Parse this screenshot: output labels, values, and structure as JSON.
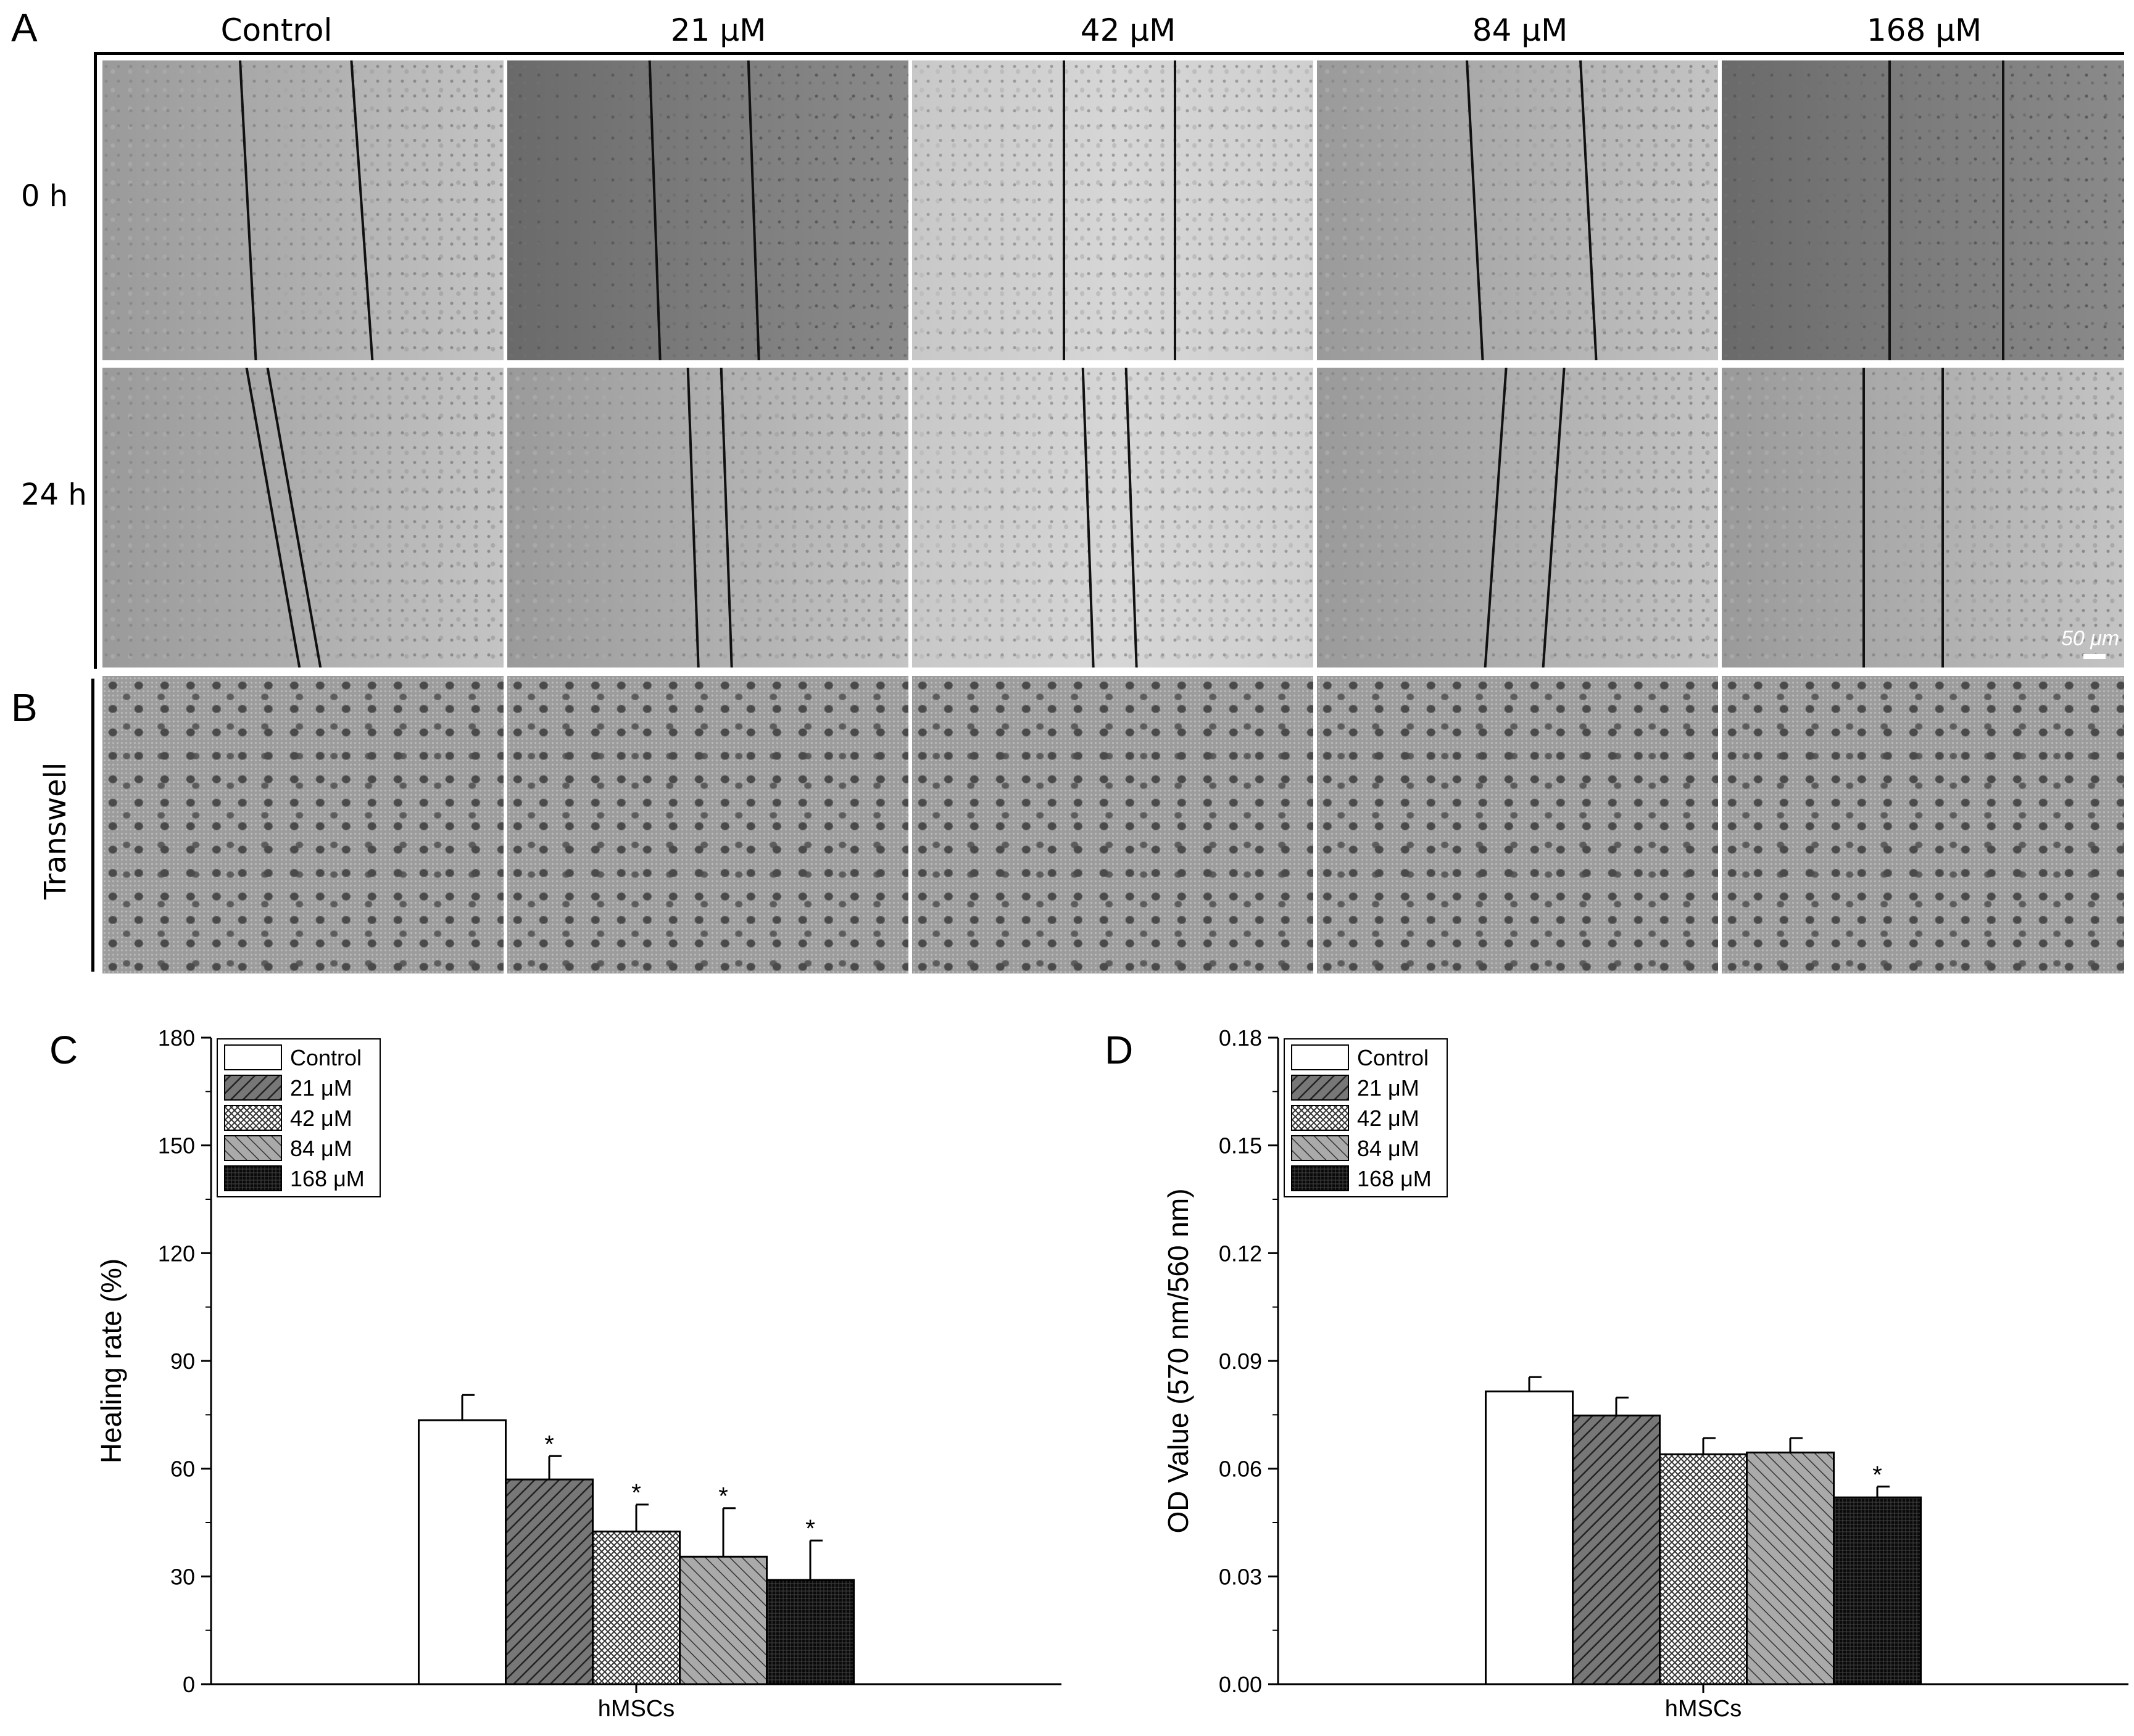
{
  "panel_labels": [
    "A",
    "B",
    "C",
    "D"
  ],
  "columns": [
    "Control",
    "21 μM",
    "42 μM",
    "84 μM",
    "168 μM"
  ],
  "rows": [
    "0 h",
    "24 h"
  ],
  "transwell_label": "Transwell",
  "scale_bar_label": "50 μm",
  "legend": [
    "Control",
    "21 μM",
    "42 μM",
    "84 μM",
    "168 μM"
  ],
  "chart_data": [
    {
      "type": "bar",
      "panel": "C",
      "categories": [
        "hMSCs"
      ],
      "series": [
        {
          "name": "Control",
          "values": [
            73.5
          ],
          "error": [
            7
          ],
          "significant": false
        },
        {
          "name": "21 μM",
          "values": [
            57
          ],
          "error": [
            6.5
          ],
          "significant": true
        },
        {
          "name": "42 μM",
          "values": [
            42.5
          ],
          "error": [
            7.5
          ],
          "significant": true
        },
        {
          "name": "84 μM",
          "values": [
            35.5
          ],
          "error": [
            13.5
          ],
          "significant": true
        },
        {
          "name": "168 μM",
          "values": [
            29
          ],
          "error": [
            11
          ],
          "significant": true
        }
      ],
      "ylabel": "Healing rate (%)",
      "xlabel": "hMSCs",
      "ylim": [
        0,
        180
      ],
      "yticks": [
        "0",
        "30",
        "60",
        "90",
        "120",
        "150",
        "180"
      ],
      "legend_position": "top-left",
      "significance_mark": "*"
    },
    {
      "type": "bar",
      "panel": "D",
      "categories": [
        "hMSCs"
      ],
      "series": [
        {
          "name": "Control",
          "values": [
            0.0815
          ],
          "error": [
            0.004
          ],
          "significant": false
        },
        {
          "name": "21 μM",
          "values": [
            0.0748
          ],
          "error": [
            0.005
          ],
          "significant": false
        },
        {
          "name": "42 μM",
          "values": [
            0.064
          ],
          "error": [
            0.0045
          ],
          "significant": false
        },
        {
          "name": "84 μM",
          "values": [
            0.0645
          ],
          "error": [
            0.004
          ],
          "significant": false
        },
        {
          "name": "168 μM",
          "values": [
            0.052
          ],
          "error": [
            0.003
          ],
          "significant": true
        }
      ],
      "ylabel": "OD Value (570 nm/560 nm)",
      "xlabel": "hMSCs",
      "ylim": [
        0,
        0.18
      ],
      "yticks": [
        "0.00",
        "0.03",
        "0.06",
        "0.09",
        "0.12",
        "0.15",
        "0.18"
      ],
      "legend_position": "top-left",
      "significance_mark": "*"
    }
  ],
  "colors": {
    "control": "#ffffff",
    "c21": "#555555",
    "c42": "#c8c8c8",
    "c84": "#8a8a8a",
    "c168": "#111111"
  }
}
